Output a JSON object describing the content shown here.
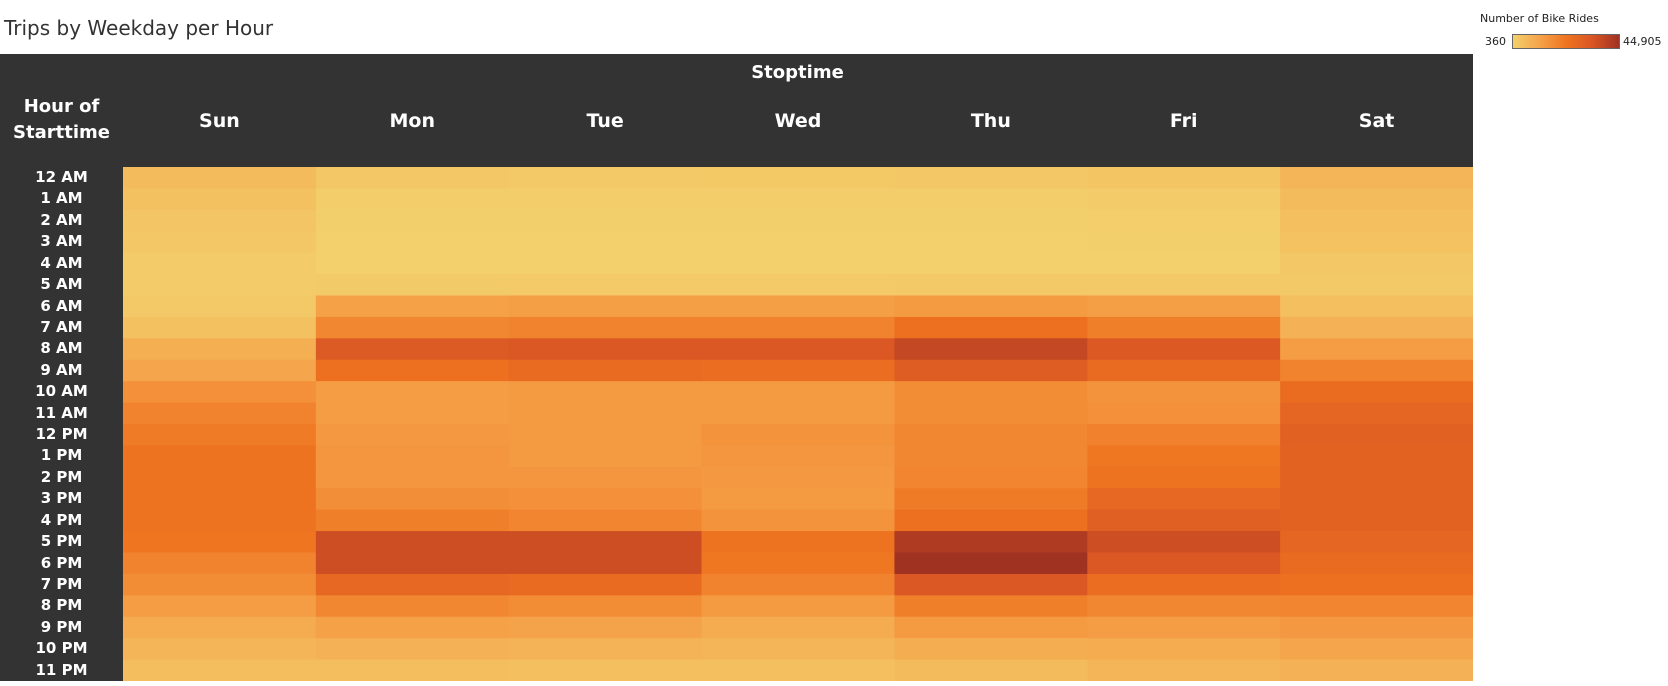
{
  "title": "Trips by Weekday per Hour",
  "legend": {
    "title": "Number of Bike Rides",
    "min_label": "360",
    "max_label": "44,905",
    "min": 360,
    "max": 44905
  },
  "headers": {
    "column_dimension": "Stoptime",
    "row_dimension_line1": "Hour of",
    "row_dimension_line2": "Starttime"
  },
  "colors": {
    "header_bg": "#333333",
    "ramp": [
      "#f3d06c",
      "#f5a34a",
      "#ef7420",
      "#d95524",
      "#a03222"
    ]
  },
  "chart_data": {
    "type": "heatmap",
    "title": "Trips by Weekday per Hour",
    "x_label": "Stoptime",
    "y_label": "Hour of Starttime",
    "x": [
      "Sun",
      "Mon",
      "Tue",
      "Wed",
      "Thu",
      "Fri",
      "Sat"
    ],
    "y": [
      "12 AM",
      "1 AM",
      "2 AM",
      "3 AM",
      "4 AM",
      "5 AM",
      "6 AM",
      "7 AM",
      "8 AM",
      "9 AM",
      "10 AM",
      "11 AM",
      "12 PM",
      "1 PM",
      "2 PM",
      "3 PM",
      "4 PM",
      "5 PM",
      "6 PM",
      "7 PM",
      "8 PM",
      "9 PM",
      "10 PM",
      "11 PM"
    ],
    "values": [
      [
        5500,
        2500,
        2000,
        2200,
        2600,
        3200,
        7000
      ],
      [
        4000,
        1200,
        1000,
        1100,
        1200,
        1600,
        5500
      ],
      [
        3000,
        700,
        600,
        650,
        700,
        900,
        4500
      ],
      [
        2500,
        450,
        400,
        420,
        450,
        550,
        3800
      ],
      [
        1500,
        380,
        360,
        370,
        380,
        420,
        2500
      ],
      [
        1400,
        1800,
        1900,
        1900,
        2100,
        2000,
        2000
      ],
      [
        2000,
        12000,
        12500,
        12500,
        13500,
        12500,
        4500
      ],
      [
        4000,
        18000,
        19000,
        19000,
        24000,
        20000,
        8000
      ],
      [
        8500,
        32000,
        33000,
        33000,
        38000,
        32500,
        13000
      ],
      [
        11000,
        24000,
        26000,
        25000,
        31000,
        26000,
        19000
      ],
      [
        16000,
        13000,
        13500,
        13500,
        17000,
        15000,
        25500
      ],
      [
        19000,
        13000,
        13500,
        13500,
        17000,
        16000,
        27500
      ],
      [
        21000,
        14000,
        13500,
        15000,
        18000,
        19500,
        29500
      ],
      [
        23000,
        14500,
        13500,
        14500,
        18000,
        22000,
        29000
      ],
      [
        23000,
        14500,
        14500,
        14000,
        18500,
        23000,
        29000
      ],
      [
        23000,
        16500,
        16000,
        13500,
        21000,
        27000,
        29000
      ],
      [
        23000,
        20000,
        18500,
        15000,
        24000,
        30000,
        29000
      ],
      [
        22500,
        36000,
        36000,
        23000,
        42000,
        36000,
        27500
      ],
      [
        19000,
        36000,
        36000,
        22000,
        44905,
        33000,
        26000
      ],
      [
        17000,
        27000,
        26000,
        19000,
        33000,
        25000,
        24000
      ],
      [
        13000,
        18000,
        17000,
        13500,
        20000,
        18000,
        18500
      ],
      [
        9500,
        12000,
        11500,
        9500,
        13500,
        13000,
        14000
      ],
      [
        7000,
        8000,
        7500,
        7000,
        9000,
        9500,
        11000
      ],
      [
        5000,
        5000,
        4500,
        4500,
        5500,
        7000,
        8000
      ]
    ]
  }
}
